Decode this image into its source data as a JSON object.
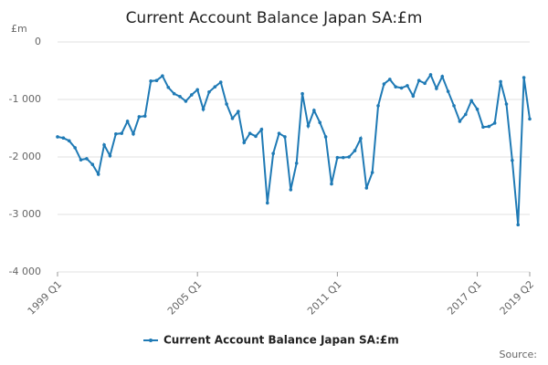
{
  "chart_data": {
    "type": "line",
    "title": "Current Account Balance Japan SA:£m",
    "y_label": "£m",
    "source": "Source:",
    "categories": [
      "1999 Q1",
      null,
      null,
      null,
      null,
      null,
      null,
      null,
      null,
      null,
      null,
      null,
      null,
      null,
      null,
      null,
      null,
      null,
      null,
      null,
      null,
      null,
      null,
      null,
      "2005 Q1",
      null,
      null,
      null,
      null,
      null,
      null,
      null,
      null,
      null,
      null,
      null,
      null,
      null,
      null,
      null,
      null,
      null,
      null,
      null,
      null,
      null,
      null,
      null,
      "2011 Q1",
      null,
      null,
      null,
      null,
      null,
      null,
      null,
      null,
      null,
      null,
      null,
      null,
      null,
      null,
      null,
      null,
      null,
      null,
      null,
      null,
      null,
      null,
      null,
      "2017 Q1",
      null,
      null,
      null,
      null,
      null,
      null,
      null,
      null,
      "2019 Q2"
    ],
    "series": [
      {
        "name": "Current Account Balance Japan SA:£m",
        "color": "#1f7ab5",
        "values": [
          -1650,
          -1670,
          -1720,
          -1840,
          -2050,
          -2030,
          -2130,
          -2300,
          -1790,
          -1980,
          -1600,
          -1590,
          -1380,
          -1600,
          -1300,
          -1290,
          -680,
          -670,
          -590,
          -790,
          -900,
          -950,
          -1030,
          -920,
          -830,
          -1170,
          -870,
          -780,
          -700,
          -1080,
          -1330,
          -1210,
          -1750,
          -1590,
          -1640,
          -1520,
          -2800,
          -1940,
          -1590,
          -1650,
          -2570,
          -2110,
          -900,
          -1460,
          -1190,
          -1400,
          -1650,
          -2470,
          -2010,
          -2010,
          -2000,
          -1890,
          -1680,
          -2540,
          -2270,
          -1110,
          -730,
          -650,
          -780,
          -800,
          -760,
          -940,
          -670,
          -720,
          -570,
          -810,
          -600,
          -860,
          -1110,
          -1380,
          -1260,
          -1020,
          -1170,
          -1480,
          -1470,
          -1410,
          -690,
          -1080,
          -2060,
          -3180,
          -620,
          -1340
        ]
      }
    ],
    "ylim": [
      -4000,
      0
    ],
    "yticks": [
      {
        "value": -4000,
        "label": "-4 000"
      },
      {
        "value": -3000,
        "label": "-3 000"
      },
      {
        "value": -2000,
        "label": "-2 000"
      },
      {
        "value": -1000,
        "label": "-1 000"
      },
      0
    ],
    "grid": true
  }
}
